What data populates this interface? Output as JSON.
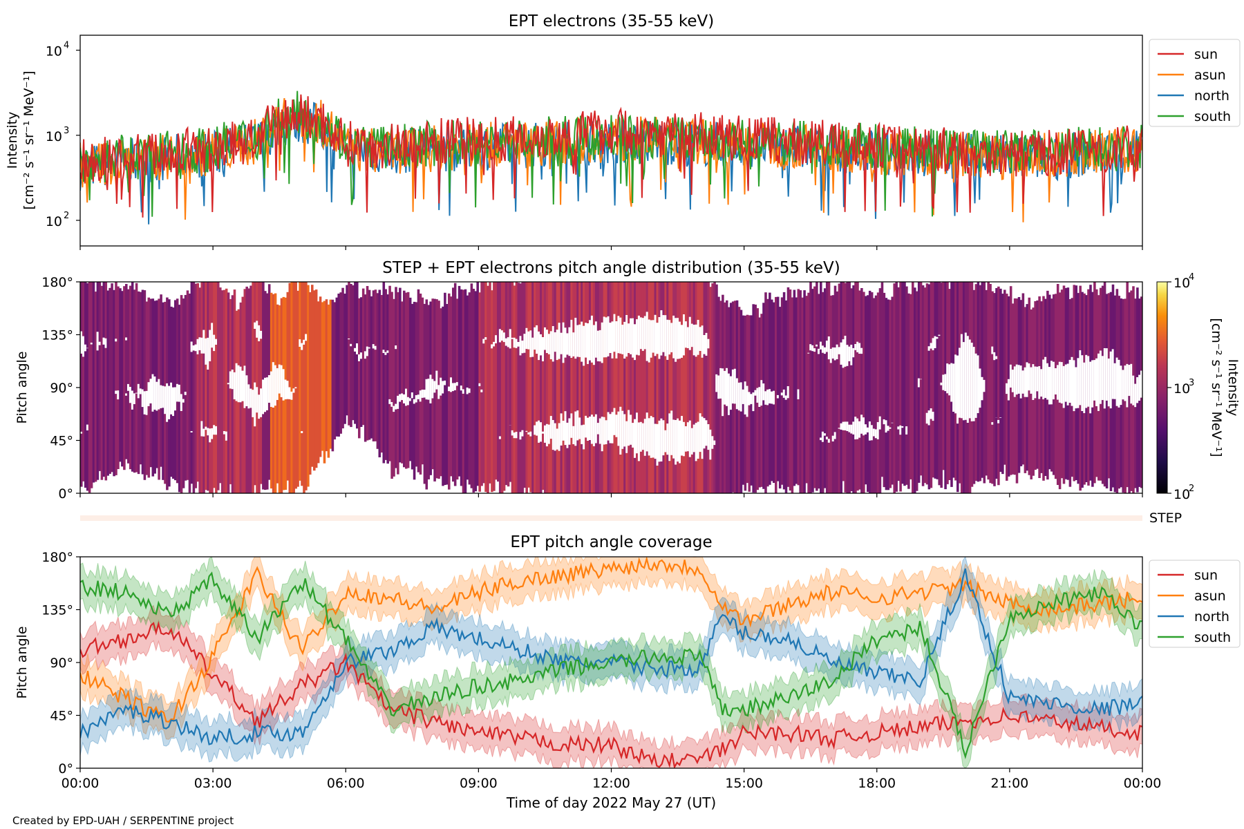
{
  "footer": "Created by EPD-UAH / SERPENTINE project",
  "xlabel": "Time of day 2022 May 27 (UT)",
  "x_ticks": [
    "00:00",
    "03:00",
    "06:00",
    "09:00",
    "12:00",
    "15:00",
    "18:00",
    "21:00",
    "00:00"
  ],
  "colors": {
    "sun": "#d62728",
    "asun": "#ff7f0e",
    "north": "#1f77b4",
    "south": "#2ca02c"
  },
  "chart_data": [
    {
      "type": "line",
      "title": "EPT electrons (35-55 keV)",
      "ylabel": [
        "Intensity",
        "[cm⁻² s⁻¹ sr⁻¹ MeV⁻¹]"
      ],
      "yscale": "log",
      "ylim": [
        50,
        15000
      ],
      "y_ticks": [
        "10",
        "10",
        "10"
      ],
      "y_tick_exponents": [
        "4",
        "3",
        "2"
      ],
      "y_tick_values": [
        10000,
        1000,
        100
      ],
      "xlim_hours": [
        0,
        24
      ],
      "legend": {
        "placement": "outside-right-top",
        "entries": [
          "sun",
          "asun",
          "north",
          "south"
        ]
      },
      "series": [
        {
          "name": "sun",
          "x_hours": [
            0,
            1,
            2,
            3,
            4,
            4.5,
            5,
            5.5,
            6,
            7,
            8,
            9,
            10,
            11,
            12,
            13,
            14,
            15,
            16,
            17,
            18,
            19,
            20,
            21,
            22,
            23,
            24
          ],
          "values": [
            500,
            560,
            620,
            680,
            900,
            1500,
            1700,
            1400,
            800,
            750,
            850,
            900,
            950,
            1000,
            1150,
            1050,
            1000,
            900,
            850,
            800,
            760,
            720,
            650,
            600,
            620,
            680,
            700
          ]
        },
        {
          "name": "asun",
          "x_hours": [
            0,
            1,
            2,
            3,
            4,
            4.5,
            5,
            5.5,
            6,
            7,
            8,
            9,
            10,
            11,
            12,
            13,
            14,
            15,
            16,
            17,
            18,
            19,
            20,
            21,
            22,
            23,
            24
          ],
          "values": [
            450,
            500,
            560,
            620,
            850,
            1450,
            1650,
            1350,
            700,
            650,
            700,
            750,
            800,
            850,
            900,
            880,
            850,
            780,
            750,
            700,
            650,
            620,
            580,
            560,
            580,
            640,
            680
          ]
        },
        {
          "name": "north",
          "x_hours": [
            0,
            1,
            2,
            3,
            4,
            4.5,
            5,
            5.5,
            6,
            7,
            8,
            9,
            10,
            11,
            12,
            13,
            14,
            15,
            16,
            17,
            18,
            19,
            20,
            21,
            22,
            23,
            24
          ],
          "values": [
            420,
            480,
            540,
            600,
            800,
            1300,
            1500,
            1200,
            700,
            640,
            690,
            720,
            760,
            800,
            850,
            830,
            800,
            760,
            720,
            690,
            640,
            600,
            560,
            540,
            560,
            620,
            660
          ]
        },
        {
          "name": "south",
          "x_hours": [
            0,
            1,
            2,
            3,
            4,
            4.5,
            5,
            5.5,
            6,
            7,
            8,
            9,
            10,
            11,
            12,
            13,
            14,
            15,
            16,
            17,
            18,
            19,
            20,
            21,
            22,
            23,
            24
          ],
          "values": [
            480,
            540,
            600,
            700,
            950,
            1600,
            1800,
            1450,
            780,
            720,
            800,
            820,
            860,
            900,
            950,
            920,
            880,
            820,
            800,
            780,
            740,
            700,
            650,
            620,
            640,
            700,
            720
          ]
        }
      ]
    },
    {
      "type": "heatmap",
      "title": "STEP + EPT electrons pitch angle distribution (35-55 keV)",
      "ylabel": "Pitch angle",
      "y_ticks": [
        "180°",
        "135°",
        "90°",
        "45°",
        "0°"
      ],
      "y_tick_values": [
        180,
        135,
        90,
        45,
        0
      ],
      "ylim": [
        0,
        180
      ],
      "xlim_hours": [
        0,
        24
      ],
      "colorbar": {
        "label": [
          "Intensity",
          "[cm⁻² s⁻¹ sr⁻¹ MeV⁻¹]"
        ],
        "scale": "log",
        "ticks": [
          "10",
          "10",
          "10"
        ],
        "tick_exponents": [
          "4",
          "3",
          "2"
        ],
        "range": [
          100,
          10000
        ],
        "colormap": "inferno"
      },
      "band_label": "STEP"
    },
    {
      "type": "line",
      "title": "EPT pitch angle coverage",
      "ylabel": "Pitch angle",
      "y_ticks": [
        "180°",
        "135°",
        "90°",
        "45°",
        "0°"
      ],
      "y_tick_values": [
        180,
        135,
        90,
        45,
        0
      ],
      "ylim": [
        0,
        180
      ],
      "xlim_hours": [
        0,
        24
      ],
      "legend": {
        "placement": "outside-right-top",
        "entries": [
          "sun",
          "asun",
          "north",
          "south"
        ]
      },
      "series": [
        {
          "name": "sun",
          "x_hours": [
            0,
            1,
            2,
            3,
            4,
            5,
            6,
            7,
            8,
            9,
            10,
            11,
            12,
            13,
            14,
            14.5,
            15,
            16,
            17,
            18,
            19,
            20,
            21,
            22,
            23,
            24
          ],
          "values": [
            100,
            110,
            120,
            80,
            40,
            70,
            90,
            50,
            40,
            30,
            25,
            20,
            20,
            5,
            8,
            15,
            30,
            30,
            25,
            30,
            35,
            40,
            45,
            40,
            35,
            30
          ]
        },
        {
          "name": "asun",
          "x_hours": [
            0,
            1,
            2,
            3,
            4,
            5,
            6,
            7,
            8,
            9,
            10,
            11,
            12,
            13,
            14,
            14.5,
            15,
            16,
            17,
            18,
            19,
            20,
            21,
            22,
            23,
            24
          ],
          "values": [
            80,
            60,
            40,
            95,
            165,
            100,
            150,
            145,
            135,
            150,
            160,
            165,
            170,
            175,
            170,
            140,
            125,
            140,
            150,
            145,
            150,
            155,
            140,
            135,
            140,
            145
          ]
        },
        {
          "name": "north",
          "x_hours": [
            0,
            1,
            2,
            3,
            4,
            5,
            6,
            7,
            8,
            9,
            10,
            11,
            12,
            13,
            14,
            14.5,
            15,
            16,
            17,
            18,
            19,
            20,
            21,
            22,
            23,
            24
          ],
          "values": [
            30,
            50,
            40,
            25,
            30,
            30,
            90,
            100,
            120,
            110,
            100,
            90,
            90,
            85,
            85,
            130,
            115,
            110,
            90,
            80,
            75,
            165,
            60,
            55,
            50,
            55
          ]
        },
        {
          "name": "south",
          "x_hours": [
            0,
            1,
            2,
            3,
            4,
            5,
            6,
            7,
            8,
            9,
            10,
            11,
            12,
            13,
            14,
            14.5,
            15,
            16,
            17,
            18,
            19,
            20,
            21,
            22,
            23,
            24
          ],
          "values": [
            155,
            150,
            130,
            160,
            110,
            160,
            110,
            50,
            60,
            70,
            75,
            85,
            90,
            95,
            95,
            50,
            50,
            60,
            75,
            110,
            120,
            15,
            130,
            140,
            150,
            120
          ]
        }
      ]
    }
  ]
}
